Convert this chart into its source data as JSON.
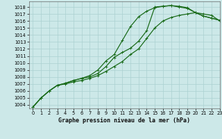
{
  "xlabel": "Graphe pression niveau de la mer (hPa)",
  "xlim": [
    -0.5,
    23
  ],
  "ylim": [
    1003.5,
    1018.8
  ],
  "yticks": [
    1004,
    1005,
    1006,
    1007,
    1008,
    1009,
    1010,
    1011,
    1012,
    1013,
    1014,
    1015,
    1016,
    1017,
    1018
  ],
  "xticks": [
    0,
    1,
    2,
    3,
    4,
    5,
    6,
    7,
    8,
    9,
    10,
    11,
    12,
    13,
    14,
    15,
    16,
    17,
    18,
    19,
    20,
    21,
    22,
    23
  ],
  "bg_color": "#cce8e8",
  "grid_color": "#aad0d0",
  "line_colors": [
    "#1a6b1a",
    "#1a6b1a",
    "#1a6b1a"
  ],
  "curves": [
    [
      1003.7,
      1005.0,
      1006.0,
      1006.8,
      1007.1,
      1007.5,
      1007.8,
      1008.2,
      1009.0,
      1010.3,
      1011.2,
      1013.2,
      1015.2,
      1016.6,
      1017.4,
      1017.9,
      1018.1,
      1018.2,
      1018.1,
      1017.9,
      1017.2,
      1016.7,
      1016.4,
      1016.1
    ],
    [
      1003.7,
      1005.0,
      1006.0,
      1006.8,
      1007.1,
      1007.5,
      1007.8,
      1008.0,
      1008.5,
      1009.5,
      1010.8,
      1011.5,
      1012.1,
      1013.1,
      1014.6,
      1018.0,
      1018.1,
      1018.2,
      1018.0,
      1017.8,
      1017.2,
      1017.0,
      1016.8,
      1016.0
    ],
    [
      1003.7,
      1005.0,
      1006.0,
      1006.8,
      1007.0,
      1007.3,
      1007.5,
      1007.8,
      1008.2,
      1008.8,
      1009.5,
      1010.2,
      1011.2,
      1012.0,
      1013.5,
      1015.0,
      1016.0,
      1016.5,
      1016.8,
      1017.0,
      1017.2,
      1016.7,
      1016.4,
      1016.1
    ]
  ],
  "marker": "+",
  "markersize": 3.5,
  "linewidth": 0.9,
  "tick_fontsize": 4.8,
  "label_fontsize": 6.0,
  "label_fontweight": "bold",
  "figsize": [
    3.2,
    2.0
  ],
  "dpi": 100
}
